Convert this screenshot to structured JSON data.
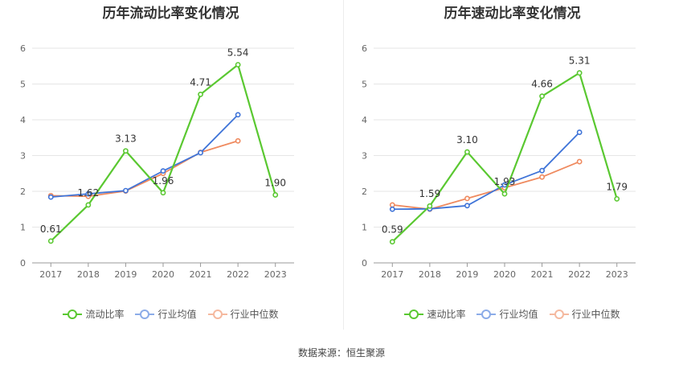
{
  "source_text": "数据来源：恒生聚源",
  "chart_data": [
    {
      "type": "line",
      "title": "历年流动比率变化情况",
      "categories": [
        "2017",
        "2018",
        "2019",
        "2020",
        "2021",
        "2022",
        "2023"
      ],
      "ylim": [
        0,
        6
      ],
      "yticks": [
        0,
        1,
        2,
        3,
        4,
        5,
        6
      ],
      "grid": true,
      "legend_position": "bottom",
      "series": [
        {
          "name": "流动比率",
          "color": "#5ac831",
          "values": [
            0.61,
            1.62,
            3.13,
            1.96,
            4.71,
            5.54,
            1.9
          ],
          "labels": [
            "0.61",
            "1.62",
            "3.13",
            "1.96",
            "4.71",
            "5.54",
            "1.90"
          ]
        },
        {
          "name": "行业均值",
          "color": "#3f74d8",
          "values": [
            1.84,
            1.93,
            2.02,
            2.57,
            3.08,
            4.14,
            null
          ]
        },
        {
          "name": "行业中位数",
          "color": "#ef8a5f",
          "values": [
            1.88,
            1.86,
            2.01,
            2.5,
            3.09,
            3.41,
            null
          ]
        }
      ]
    },
    {
      "type": "line",
      "title": "历年速动比率变化情况",
      "categories": [
        "2017",
        "2018",
        "2019",
        "2020",
        "2021",
        "2022",
        "2023"
      ],
      "ylim": [
        0,
        6
      ],
      "yticks": [
        0,
        1,
        2,
        3,
        4,
        5,
        6
      ],
      "grid": true,
      "legend_position": "bottom",
      "series": [
        {
          "name": "速动比率",
          "color": "#5ac831",
          "values": [
            0.59,
            1.59,
            3.1,
            1.93,
            4.66,
            5.31,
            1.79
          ],
          "labels": [
            "0.59",
            "1.59",
            "3.10",
            "1.93",
            "4.66",
            "5.31",
            "1.79"
          ]
        },
        {
          "name": "行业均值",
          "color": "#3f74d8",
          "values": [
            1.5,
            1.51,
            1.6,
            2.18,
            2.58,
            3.65,
            null
          ]
        },
        {
          "name": "行业中位数",
          "color": "#ef8a5f",
          "values": [
            1.62,
            1.5,
            1.8,
            2.1,
            2.4,
            2.83,
            null
          ]
        }
      ]
    }
  ]
}
